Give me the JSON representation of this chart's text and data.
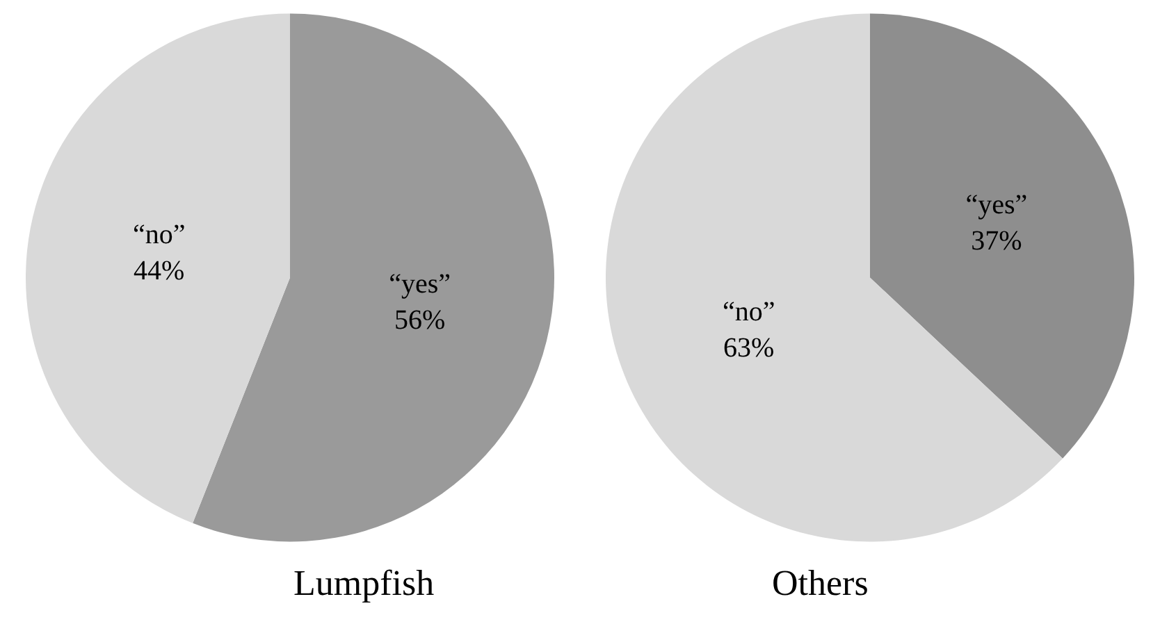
{
  "chart_data": [
    {
      "type": "pie",
      "title": "Lumpfish",
      "categories": [
        "“yes”",
        "“no”"
      ],
      "values": [
        56,
        44
      ],
      "value_labels": [
        "56%",
        "44%"
      ],
      "colors": [
        "#9a9a9a",
        "#d9d9d9"
      ],
      "legend": false
    },
    {
      "type": "pie",
      "title": "Others",
      "categories": [
        "“yes”",
        "“no”"
      ],
      "values": [
        37,
        63
      ],
      "value_labels": [
        "37%",
        "63%"
      ],
      "colors": [
        "#8e8e8e",
        "#d9d9d9"
      ],
      "legend": false
    }
  ]
}
